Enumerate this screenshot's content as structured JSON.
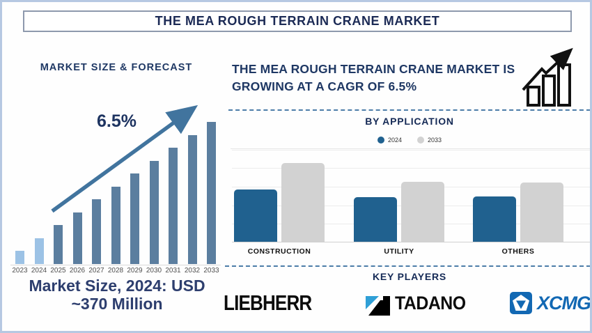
{
  "page": {
    "title": "THE MEA ROUGH TERRAIN CRANE MARKET"
  },
  "forecast": {
    "heading": "MARKET SIZE & FORECAST",
    "growth_label": "6.5%",
    "note": "Market Size, 2024: USD ~370 Million"
  },
  "growth_banner": {
    "text": "THE MEA ROUGH TERRAIN CRANE MARKET IS GROWING AT A CAGR OF 6.5%"
  },
  "application": {
    "heading": "BY APPLICATION"
  },
  "key_players": {
    "heading": "KEY PLAYERS",
    "players": [
      {
        "name": "LIEBHERR"
      },
      {
        "name": "TADANO"
      },
      {
        "name": "XCMG"
      }
    ]
  },
  "colors": {
    "navy_text": "#1f3864",
    "forecast_bar_highlight": "#9cc2e5",
    "forecast_bar_base": "#5b7e9f",
    "arrow": "#41749e",
    "application_2024": "#20618f",
    "application_2033": "#d2d2d2",
    "dashed_separator": "#4b7ca8"
  },
  "chart_data": [
    {
      "id": "market-size-forecast",
      "type": "bar",
      "title": "MARKET SIZE & FORECAST",
      "categories": [
        "2023",
        "2024",
        "2025",
        "2026",
        "2027",
        "2028",
        "2029",
        "2030",
        "2031",
        "2032",
        "2033"
      ],
      "values": [
        19,
        37,
        56,
        74,
        93,
        111,
        130,
        148,
        167,
        185,
        204
      ],
      "values_unit": "relative bar height (axis unlabeled; illustrative of 6.5% CAGR growth from USD ~370M in 2024)",
      "annotation": "6.5%",
      "highlight_categories": [
        "2023",
        "2024"
      ],
      "xlabel": "",
      "ylabel": "",
      "grid": false,
      "legend": false
    },
    {
      "id": "by-application",
      "type": "bar",
      "title": "BY APPLICATION",
      "categories": [
        "CONSTRUCTION",
        "UTILITY",
        "OTHERS"
      ],
      "series": [
        {
          "name": "2024",
          "values": [
            75,
            64,
            65
          ],
          "color": "#20618f"
        },
        {
          "name": "2033",
          "values": [
            113,
            86,
            85
          ],
          "color": "#d2d2d2"
        }
      ],
      "values_unit": "relative bar height (axis unlabeled)",
      "legend_position": "top",
      "grid": true
    }
  ]
}
